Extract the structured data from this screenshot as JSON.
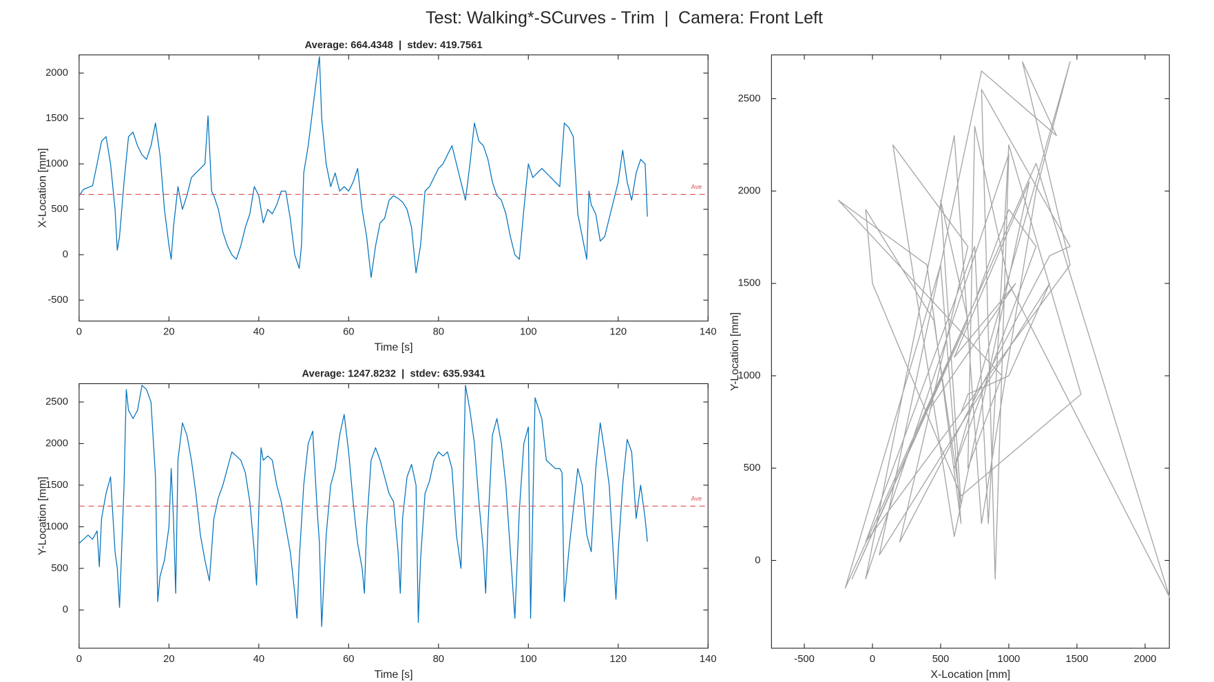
{
  "title": "Test: Walking*-SCurves - Trim  |  Camera: Front Left",
  "chart_data": [
    {
      "type": "line",
      "title": "Average: 664.4348  |  stdev: 419.7561",
      "x_label": "Time [s]",
      "y_label": "X-Location [mm]",
      "average": 664.4348,
      "average_label": "Ave",
      "average_color": "#d9534f",
      "xlim": [
        0,
        140
      ],
      "xticks": [
        0,
        20,
        40,
        60,
        80,
        100,
        120,
        140
      ],
      "ylim": [
        -730,
        2200
      ],
      "yticks": [
        -500,
        0,
        500,
        1000,
        1500,
        2000
      ],
      "x": [
        0,
        1,
        2,
        3,
        4,
        5,
        6,
        7,
        8,
        8.5,
        9,
        10,
        11,
        12,
        13,
        14,
        15,
        16,
        17,
        18,
        19,
        20,
        20.5,
        21,
        22,
        23,
        24,
        25,
        26,
        27,
        28,
        28.7,
        29.5,
        30,
        31,
        32,
        33,
        34,
        35,
        36,
        37,
        38,
        39,
        40,
        41,
        42,
        43,
        44,
        45,
        46,
        47,
        48,
        49,
        49.5,
        50,
        51,
        52,
        53,
        53.5,
        54,
        55,
        56,
        57,
        58,
        59,
        60,
        61,
        62,
        63,
        64,
        65,
        66,
        67,
        68,
        69,
        70,
        71,
        72,
        73,
        74,
        75,
        76,
        77,
        78,
        79,
        80,
        81,
        82,
        83,
        84,
        85,
        86,
        87,
        88,
        89,
        90,
        91,
        92,
        93,
        94,
        95,
        96,
        97,
        98,
        99,
        100,
        101,
        102,
        103,
        104,
        105,
        106,
        107,
        108,
        109,
        110,
        111,
        112,
        113,
        113.5,
        114,
        115,
        116,
        117,
        118,
        119,
        120,
        121,
        122,
        123,
        124,
        125,
        126,
        126.5
      ],
      "series": [
        {
          "color": "#0072bd",
          "values": [
            650,
            720,
            740,
            760,
            1000,
            1250,
            1300,
            1000,
            500,
            50,
            200,
            800,
            1300,
            1350,
            1200,
            1100,
            1050,
            1200,
            1450,
            1100,
            500,
            100,
            -50,
            300,
            750,
            500,
            650,
            850,
            900,
            950,
            1000,
            1530,
            700,
            650,
            500,
            250,
            100,
            0,
            -50,
            100,
            300,
            450,
            750,
            650,
            350,
            500,
            450,
            550,
            700,
            700,
            400,
            0,
            -150,
            100,
            900,
            1200,
            1600,
            2000,
            2180,
            1500,
            1000,
            750,
            900,
            700,
            750,
            700,
            800,
            950,
            500,
            200,
            -250,
            100,
            350,
            400,
            600,
            650,
            620,
            580,
            500,
            300,
            -200,
            100,
            700,
            750,
            850,
            950,
            1000,
            1100,
            1200,
            1000,
            800,
            600,
            1000,
            1450,
            1250,
            1200,
            1050,
            800,
            650,
            600,
            450,
            200,
            0,
            -50,
            500,
            1000,
            850,
            900,
            950,
            900,
            850,
            800,
            750,
            1450,
            1400,
            1300,
            450,
            200,
            -50,
            700,
            550,
            450,
            150,
            200,
            400,
            600,
            800,
            1150,
            800,
            600,
            900,
            1050,
            1000,
            420
          ]
        }
      ]
    },
    {
      "type": "line",
      "title": "Average: 1247.8232  |  stdev: 635.9341",
      "x_label": "Time [s]",
      "y_label": "Y-Location [mm]",
      "average": 1247.8232,
      "average_label": "Ave",
      "average_color": "#d9534f",
      "xlim": [
        0,
        140
      ],
      "xticks": [
        0,
        20,
        40,
        60,
        80,
        100,
        120,
        140
      ],
      "ylim": [
        -460,
        2720
      ],
      "yticks": [
        0,
        500,
        1000,
        1500,
        2000,
        2500
      ],
      "x": [
        0,
        1,
        2,
        3,
        4,
        4.5,
        5,
        6,
        7,
        8,
        8.5,
        9,
        10,
        10.5,
        11,
        12,
        13,
        14,
        15,
        16,
        17,
        17.5,
        18,
        19,
        20,
        20.5,
        21,
        21.5,
        22,
        23,
        24,
        25,
        26,
        27,
        28,
        29,
        30,
        31,
        32,
        33,
        34,
        35,
        36,
        37,
        38,
        39,
        39.5,
        40,
        40.5,
        41,
        42,
        43,
        44,
        45,
        46,
        47,
        48,
        48.5,
        49,
        50,
        51,
        52,
        53,
        53.5,
        54,
        55,
        56,
        57,
        58,
        59,
        60,
        61,
        62,
        63,
        63.5,
        64,
        65,
        66,
        67,
        68,
        69,
        70,
        71,
        71.5,
        72,
        73,
        74,
        75,
        75.5,
        76,
        77,
        78,
        79,
        80,
        81,
        82,
        83,
        84,
        85,
        85.5,
        86,
        87,
        88,
        89,
        90,
        90.5,
        91,
        92,
        93,
        94,
        95,
        96,
        97,
        98,
        99,
        100,
        100.5,
        101.5,
        103,
        104,
        105,
        106,
        107,
        107.5,
        108,
        109,
        110,
        111,
        112,
        113,
        114,
        115,
        116,
        117,
        118,
        119,
        119.5,
        120,
        121,
        122,
        123,
        124,
        125,
        126,
        126.5
      ],
      "series": [
        {
          "color": "#0072bd",
          "values": [
            800,
            850,
            900,
            850,
            950,
            520,
            1100,
            1400,
            1600,
            700,
            500,
            30,
            1500,
            2650,
            2400,
            2300,
            2400,
            2700,
            2650,
            2500,
            1600,
            100,
            400,
            600,
            1000,
            1700,
            1100,
            200,
            1800,
            2250,
            2100,
            1800,
            1400,
            900,
            600,
            350,
            1100,
            1350,
            1500,
            1700,
            1900,
            1850,
            1800,
            1650,
            1300,
            700,
            300,
            1200,
            1950,
            1800,
            1850,
            1800,
            1500,
            1300,
            1000,
            700,
            200,
            -100,
            600,
            1500,
            2000,
            2150,
            1200,
            800,
            -200,
            900,
            1500,
            1700,
            2100,
            2350,
            1900,
            1300,
            800,
            500,
            200,
            1000,
            1800,
            1950,
            1800,
            1600,
            1400,
            1300,
            700,
            200,
            1100,
            1600,
            1750,
            1500,
            -150,
            600,
            1400,
            1550,
            1800,
            1900,
            1850,
            1900,
            1700,
            900,
            500,
            1500,
            2700,
            2400,
            2000,
            1300,
            700,
            200,
            1000,
            2100,
            2300,
            2000,
            1500,
            700,
            -100,
            1200,
            2000,
            2200,
            -100,
            2550,
            2300,
            1800,
            1750,
            1700,
            1700,
            1650,
            100,
            700,
            1200,
            1700,
            1500,
            900,
            700,
            1700,
            2250,
            1900,
            1500,
            600,
            130,
            700,
            1500,
            2050,
            1900,
            1100,
            1500,
            1100,
            820
          ]
        }
      ]
    },
    {
      "type": "line",
      "x_label": "X-Location [mm]",
      "y_label": "Y-Location [mm]",
      "xlim": [
        -741,
        2178
      ],
      "xticks": [
        -500,
        0,
        500,
        1000,
        1500,
        2000
      ],
      "ylim": [
        -475,
        2737
      ],
      "yticks": [
        0,
        500,
        1000,
        1500,
        2000,
        2500
      ],
      "x": [
        650,
        700,
        1000,
        1300,
        50,
        800,
        1350,
        1100,
        1450,
        -50,
        750,
        850,
        1000,
        1530,
        650,
        0,
        -50,
        450,
        650,
        500,
        700,
        -150,
        1200,
        2180,
        1000,
        750,
        700,
        950,
        -250,
        400,
        650,
        500,
        -200,
        750,
        1000,
        1200,
        600,
        1450,
        1200,
        800,
        600,
        -50,
        1000,
        900,
        800,
        1450,
        1300,
        200,
        700,
        150,
        600,
        1150,
        600,
        1050,
        420
      ],
      "series": [
        {
          "color": "#a6a6a6",
          "values": [
            800,
            900,
            1000,
            1500,
            30,
            2650,
            2300,
            2700,
            1600,
            100,
            1700,
            200,
            2250,
            900,
            350,
            1500,
            1900,
            1300,
            300,
            1950,
            1300,
            -100,
            2150,
            -200,
            1500,
            2350,
            500,
            1000,
            1950,
            1600,
            200,
            1600,
            -150,
            1400,
            1900,
            1700,
            500,
            2700,
            2000,
            200,
            2300,
            -100,
            2200,
            -100,
            2550,
            1700,
            1650,
            100,
            1700,
            2250,
            130,
            2050,
            1100,
            1500,
            820
          ]
        }
      ]
    }
  ]
}
